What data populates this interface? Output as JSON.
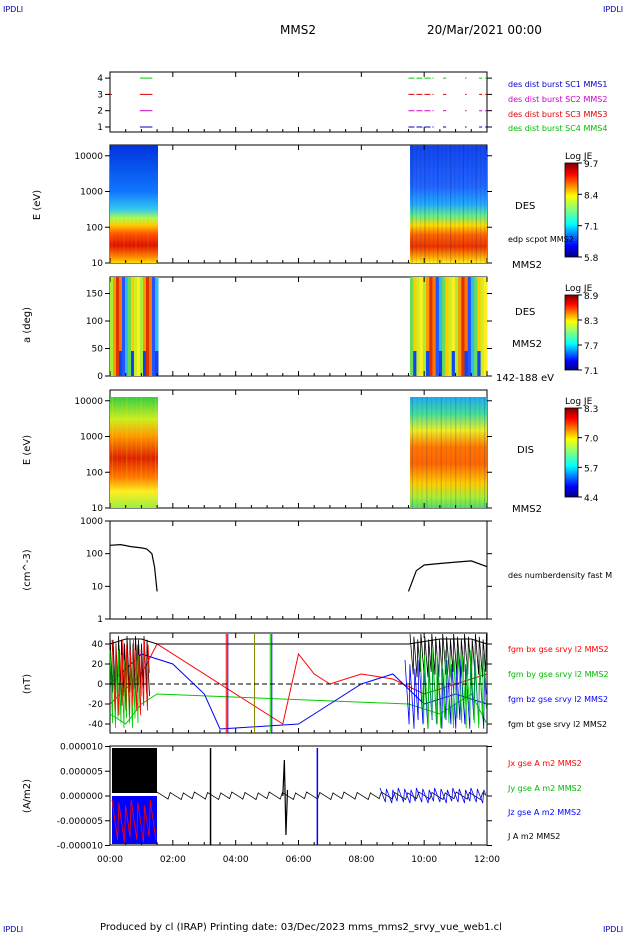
{
  "header": {
    "corner_left_top": "IPDLI",
    "corner_right_top": "IPDLI",
    "corner_left_bottom": "IPDLI",
    "corner_right_bottom": "IPDLI",
    "spacecraft": "MMS2",
    "date": "20/Mar/2021 00:00"
  },
  "footer": {
    "text": "Produced by cl (IRAP)   Printing date: 03/Dec/2023   mms_mms2_srvy_vue_web1.cl"
  },
  "colors": {
    "sc1": "#0000cc",
    "sc2": "#cc00cc",
    "sc3": "#dd0000",
    "sc4": "#00cc00",
    "bx": "#ff0000",
    "by": "#00cc00",
    "bz": "#0000ff",
    "bt": "#000000"
  },
  "chart_data": [
    {
      "panel": "burst",
      "type": "line",
      "yticks": [
        "1",
        "2",
        "3",
        "4"
      ],
      "series": [
        {
          "name": "des dist burst SC1 MMS1",
          "level": 1
        },
        {
          "name": "des dist burst SC2 MMS2",
          "level": 2
        },
        {
          "name": "des dist burst SC3 MMS3",
          "level": 3
        },
        {
          "name": "des dist burst SC4 MMS4",
          "level": 4
        }
      ]
    },
    {
      "panel": "des_energy",
      "type": "heatmap",
      "ylabel": "E (eV)",
      "yticks": [
        "10",
        "100",
        "1000",
        "10000"
      ],
      "label_des": "DES",
      "label_scpot": "edp scpot MMS2",
      "label_sc": "MMS2",
      "colorbar": {
        "title": "Log JE",
        "ticks": [
          "9.7",
          "8.4",
          "7.1",
          "5.8"
        ]
      }
    },
    {
      "panel": "des_pitch",
      "type": "heatmap",
      "ylabel": "a (deg)",
      "yticks": [
        "0",
        "50",
        "100",
        "150"
      ],
      "label_des": "DES",
      "label_sc": "MMS2",
      "label_range": "142-188 eV",
      "colorbar": {
        "title": "Log JE",
        "ticks": [
          "8.9",
          "8.3",
          "7.7",
          "7.1"
        ]
      }
    },
    {
      "panel": "dis_energy",
      "type": "heatmap",
      "ylabel": "E (eV)",
      "yticks": [
        "10",
        "100",
        "1000",
        "10000"
      ],
      "label_dis": "DIS",
      "label_sc": "MMS2",
      "colorbar": {
        "title": "Log JE",
        "ticks": [
          "8.3",
          "7.0",
          "5.7",
          "4.4"
        ]
      }
    },
    {
      "panel": "density",
      "type": "line",
      "ylabel": "(cm^-3)",
      "yticks": [
        "1",
        "10",
        "100",
        "1000"
      ],
      "series": [
        {
          "name": "des numberdensity fast M",
          "x": [
            "00:00",
            "00:20",
            "00:40",
            "01:00",
            "01:10",
            "01:20",
            "01:25",
            "01:30",
            "09:30",
            "09:45",
            "10:00",
            "10:30",
            "11:00",
            "11:30",
            "12:00"
          ],
          "y": [
            180,
            190,
            165,
            150,
            140,
            100,
            40,
            7,
            7,
            30,
            45,
            50,
            55,
            60,
            40
          ]
        }
      ]
    },
    {
      "panel": "magnetic_field",
      "type": "line",
      "ylabel": "(nT)",
      "yticks": [
        "-40",
        "-20",
        "0",
        "20",
        "40"
      ],
      "series": [
        {
          "name": "fgm bx gse srvy l2 MMS2",
          "x": [
            "00:00",
            "00:30",
            "01:00",
            "01:30",
            "05:30",
            "06:00",
            "06:30",
            "07:00",
            "08:00",
            "09:00",
            "10:00",
            "11:00",
            "12:00"
          ],
          "y": [
            -20,
            -5,
            10,
            40,
            -40,
            30,
            10,
            0,
            10,
            5,
            -10,
            0,
            10
          ]
        },
        {
          "name": "fgm by gse srvy l2 MMS2",
          "x": [
            "00:00",
            "00:30",
            "01:00",
            "01:30",
            "09:30",
            "10:30",
            "11:30",
            "12:00"
          ],
          "y": [
            -30,
            -40,
            -20,
            -10,
            -20,
            -30,
            -10,
            -40
          ]
        },
        {
          "name": "fgm bz gse srvy l2 MMS2",
          "x": [
            "00:00",
            "01:00",
            "02:00",
            "03:00",
            "03:30",
            "06:00",
            "07:00",
            "08:00",
            "09:00",
            "10:00",
            "11:00",
            "12:00"
          ],
          "y": [
            0,
            30,
            20,
            -10,
            -45,
            -40,
            -20,
            0,
            10,
            -20,
            -10,
            -20
          ]
        },
        {
          "name": "fgm bt gse srvy l2 MMS2",
          "x": [
            "00:00",
            "00:30",
            "01:00",
            "01:30",
            "09:30",
            "10:30",
            "11:30",
            "12:00"
          ],
          "y": [
            40,
            45,
            45,
            40,
            40,
            45,
            45,
            40
          ]
        }
      ]
    },
    {
      "panel": "current_density",
      "type": "line",
      "ylabel": "(A/m2)",
      "yticks": [
        "-0.000010",
        "-0.000005",
        "0.000000",
        "0.000005",
        "0.000010"
      ],
      "series": [
        {
          "name": "Jx gse A m2 MMS2"
        },
        {
          "name": "Jy gse A m2 MMS2"
        },
        {
          "name": "Jz gse A m2 MMS2"
        },
        {
          "name": "J A m2 MMS2"
        }
      ]
    }
  ],
  "xaxis": {
    "ticks": [
      "00:00",
      "02:00",
      "04:00",
      "06:00",
      "08:00",
      "10:00",
      "12:00"
    ]
  }
}
